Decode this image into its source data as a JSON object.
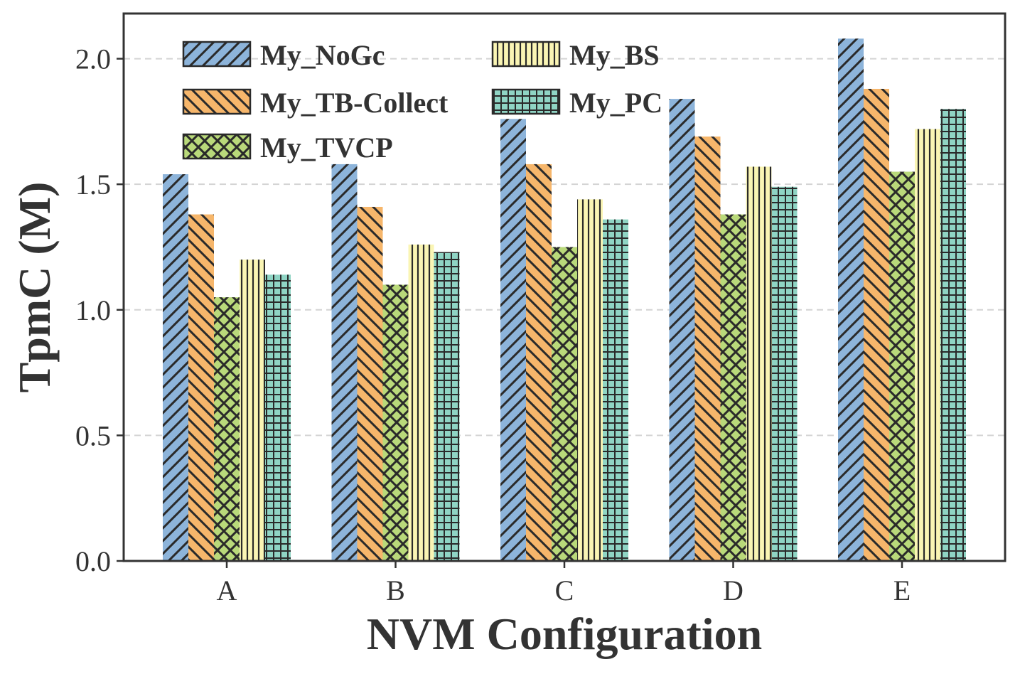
{
  "chart_data": {
    "type": "bar",
    "title": "",
    "xlabel": "NVM Configuration",
    "ylabel": "TpmC (M)",
    "categories": [
      "A",
      "B",
      "C",
      "D",
      "E"
    ],
    "ylim": [
      0,
      2.18
    ],
    "yticks": [
      "0.0",
      "0.5",
      "1.0",
      "1.5",
      "2.0"
    ],
    "grid": "horizontal dashed",
    "legend_position": "top-left",
    "series": [
      {
        "name": "My_NoGc",
        "values": [
          1.54,
          1.58,
          1.76,
          1.84,
          2.08
        ],
        "color": "#8db4da",
        "pattern": "diagonal-up"
      },
      {
        "name": "My_TB-Collect",
        "values": [
          1.38,
          1.41,
          1.58,
          1.69,
          1.88
        ],
        "color": "#f6b66b",
        "pattern": "diagonal-down"
      },
      {
        "name": "My_TVCP",
        "values": [
          1.05,
          1.1,
          1.25,
          1.38,
          1.55
        ],
        "color": "#b9d97a",
        "pattern": "crosshatch"
      },
      {
        "name": "My_BS",
        "values": [
          1.2,
          1.26,
          1.44,
          1.57,
          1.72
        ],
        "color": "#faf5b4",
        "pattern": "vertical"
      },
      {
        "name": "My_PC",
        "values": [
          1.14,
          1.23,
          1.36,
          1.49,
          1.8
        ],
        "color": "#8fd4c4",
        "pattern": "grid"
      }
    ]
  }
}
